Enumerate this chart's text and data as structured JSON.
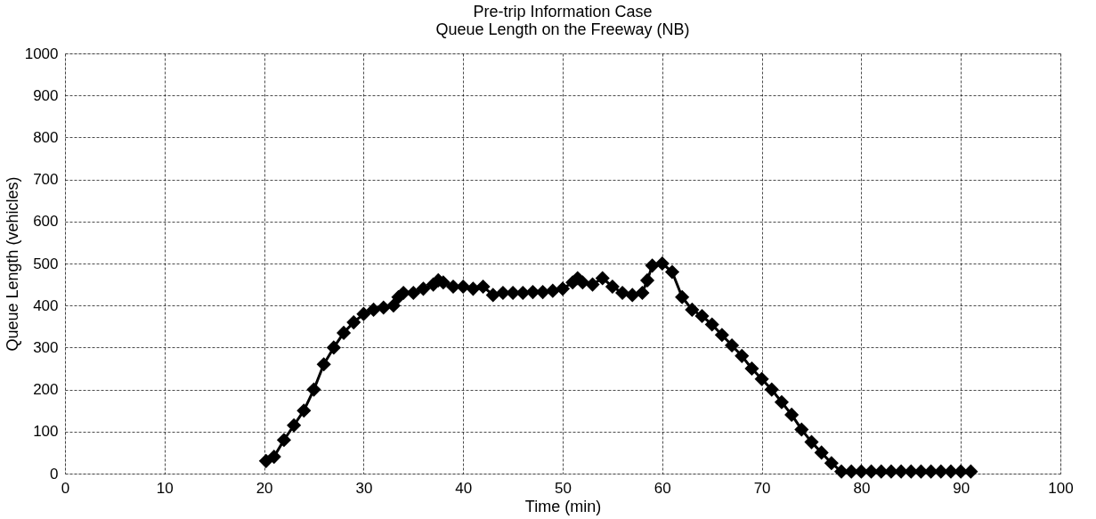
{
  "chart_data": {
    "type": "line",
    "title": [
      "Pre-trip Information Case",
      "Queue Length on the Freeway (NB)"
    ],
    "xlabel": "Time (min)",
    "ylabel": "Queue Length (vehicles)",
    "x": [
      20.2,
      21,
      22,
      23,
      24,
      25,
      26,
      27,
      28,
      29,
      30,
      31,
      32,
      33,
      33.5,
      34,
      35,
      36,
      37,
      37.5,
      38,
      39,
      40,
      41,
      42,
      43,
      44,
      45,
      46,
      47,
      48,
      49,
      50,
      51,
      51.5,
      52,
      53,
      54,
      55,
      56,
      57,
      58,
      58.5,
      59,
      60,
      61,
      62,
      63,
      64,
      65,
      66,
      67,
      68,
      69,
      70,
      71,
      72,
      73,
      74,
      75,
      76,
      77,
      78,
      79,
      80,
      81,
      82,
      83,
      84,
      85,
      86,
      87,
      88,
      89,
      90,
      91
    ],
    "series": [
      {
        "color": "#000000",
        "values": [
          30,
          40,
          80,
          115,
          150,
          200,
          260,
          300,
          335,
          360,
          380,
          390,
          395,
          400,
          420,
          430,
          430,
          440,
          450,
          460,
          455,
          445,
          445,
          440,
          445,
          425,
          430,
          430,
          430,
          432,
          432,
          435,
          440,
          455,
          465,
          455,
          450,
          465,
          445,
          430,
          425,
          430,
          460,
          495,
          500,
          480,
          420,
          390,
          375,
          355,
          330,
          305,
          280,
          250,
          225,
          200,
          170,
          140,
          105,
          75,
          50,
          25,
          5,
          5,
          5,
          5,
          5,
          5,
          5,
          5,
          5,
          5,
          5,
          5,
          5,
          5
        ]
      }
    ],
    "xlim": [
      0,
      100
    ],
    "xticks": [
      0,
      10,
      20,
      30,
      40,
      50,
      60,
      70,
      80,
      90,
      100
    ],
    "ylim": [
      0,
      1000
    ],
    "yticks": [
      0,
      100,
      200,
      300,
      400,
      500,
      600,
      700,
      800,
      900,
      1000
    ],
    "grid": true,
    "marker": "diamond",
    "line_style": "solid"
  }
}
